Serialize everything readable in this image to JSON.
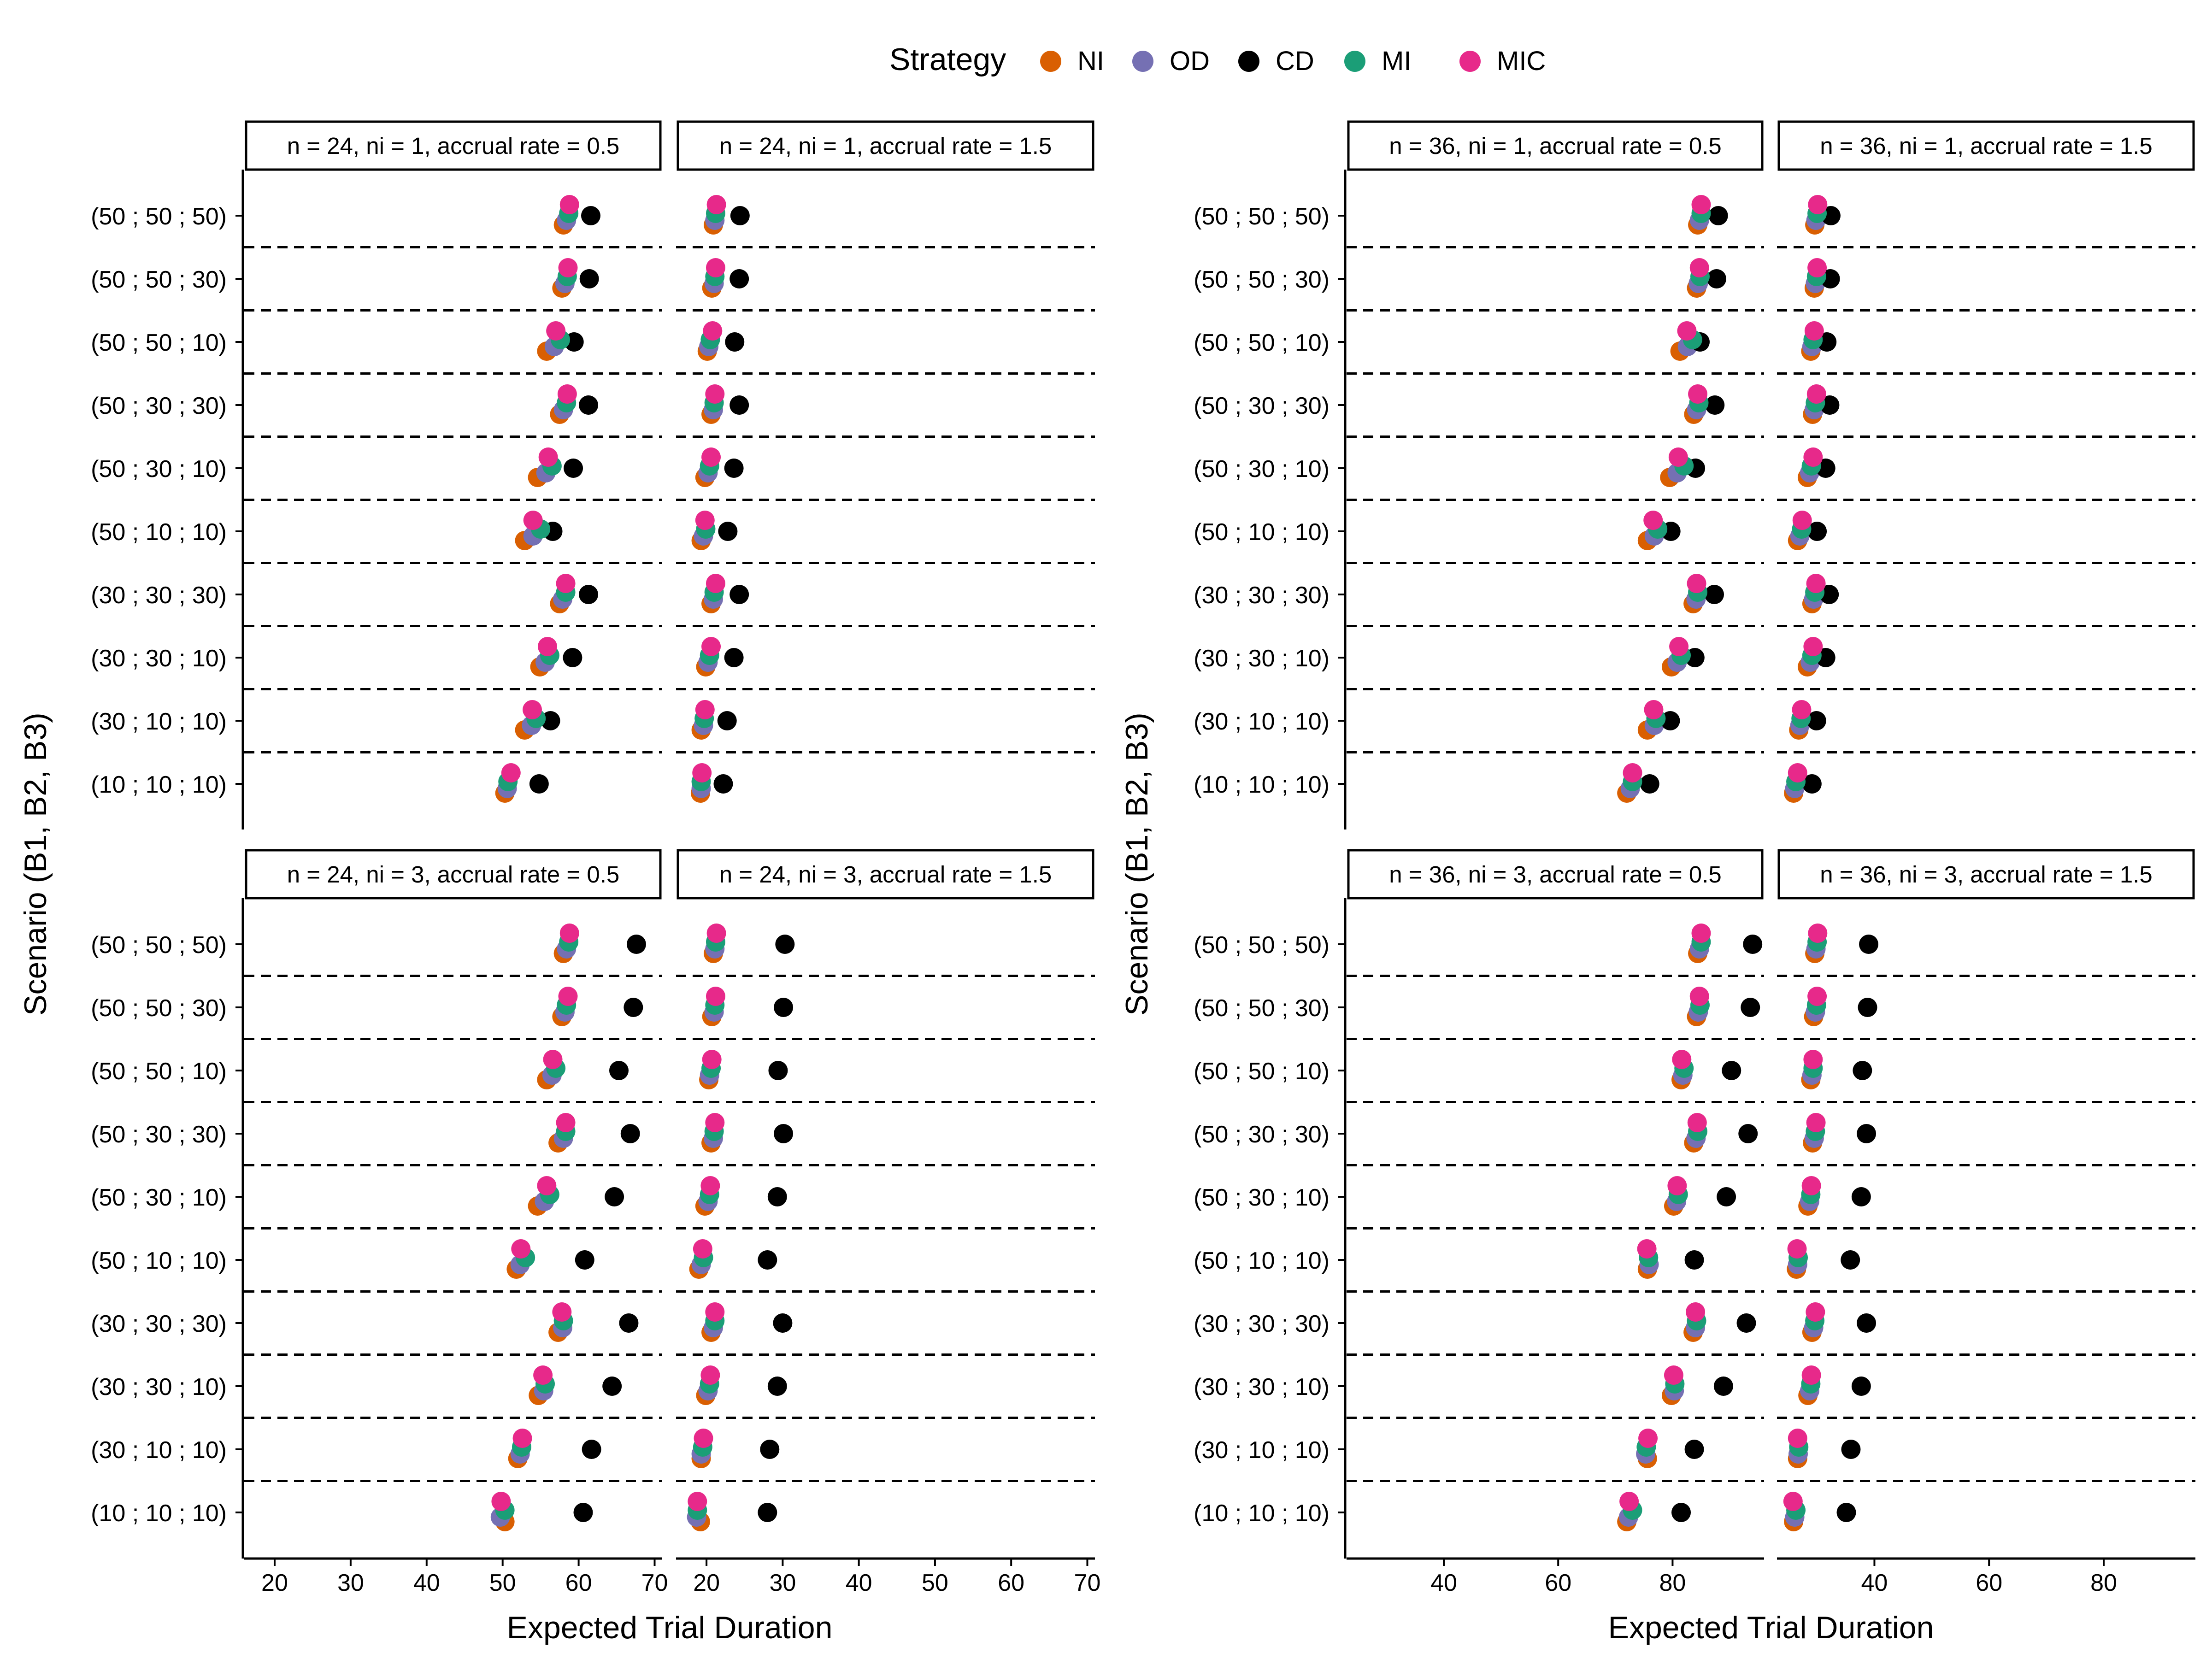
{
  "chart_data": {
    "type": "scatter",
    "legend_title": "Strategy",
    "legend_position": "top",
    "strategies": [
      {
        "name": "NI",
        "color": "#D95F02"
      },
      {
        "name": "OD",
        "color": "#7570B3"
      },
      {
        "name": "CD",
        "color": "#000000"
      },
      {
        "name": "MI",
        "color": "#1B9E77"
      },
      {
        "name": "MIC",
        "color": "#E7298A"
      }
    ],
    "scenarios": [
      "(50 ; 50 ; 50)",
      "(50 ; 50 ; 30)",
      "(50 ; 50 ; 10)",
      "(50 ; 30 ; 30)",
      "(50 ; 30 ; 10)",
      "(50 ; 10 ; 10)",
      "(30 ; 30 ; 30)",
      "(30 ; 30 ; 10)",
      "(30 ; 10 ; 10)",
      "(10 ; 10 ; 10)"
    ],
    "xlabel": "Expected Trial Duration",
    "ylabel": "Scenario (B1, B2, B3)",
    "groups": [
      {
        "xlim": [
          16,
          71
        ],
        "ticks": [
          20,
          30,
          40,
          50,
          60,
          70
        ],
        "rows": [
          {
            "panels": [
              {
                "strip": "n = 24, ni = 1, accrual rate = 0.5",
                "values": {
                  "NI": [
                    58.0,
                    57.8,
                    55.8,
                    57.5,
                    54.6,
                    52.9,
                    57.5,
                    54.9,
                    52.9,
                    50.3
                  ],
                  "OD": [
                    58.4,
                    58.2,
                    56.8,
                    58.0,
                    55.7,
                    54.0,
                    57.9,
                    55.6,
                    53.8,
                    50.6
                  ],
                  "CD": [
                    61.6,
                    61.4,
                    59.4,
                    61.3,
                    59.3,
                    56.6,
                    61.3,
                    59.2,
                    56.3,
                    54.8
                  ],
                  "MI": [
                    58.7,
                    58.5,
                    57.6,
                    58.4,
                    56.5,
                    55.0,
                    58.3,
                    56.2,
                    54.4,
                    50.7
                  ],
                  "MIC": [
                    58.8,
                    58.6,
                    57.0,
                    58.5,
                    56.0,
                    54.0,
                    58.3,
                    55.9,
                    53.9,
                    51.1
                  ]
                }
              },
              {
                "strip": "n = 24, ni = 1, accrual rate = 1.5",
                "values": {
                  "NI": [
                    20.9,
                    20.7,
                    20.1,
                    20.6,
                    19.8,
                    19.3,
                    20.6,
                    19.9,
                    19.3,
                    19.2
                  ],
                  "OD": [
                    21.1,
                    21.0,
                    20.3,
                    20.9,
                    20.2,
                    19.6,
                    20.9,
                    20.2,
                    19.6,
                    19.3
                  ],
                  "CD": [
                    24.4,
                    24.3,
                    23.7,
                    24.3,
                    23.6,
                    22.8,
                    24.3,
                    23.6,
                    22.7,
                    22.2
                  ],
                  "MI": [
                    21.2,
                    21.1,
                    20.5,
                    21.0,
                    20.4,
                    19.9,
                    21.0,
                    20.4,
                    19.7,
                    19.3
                  ],
                  "MIC": [
                    21.3,
                    21.2,
                    20.8,
                    21.1,
                    20.6,
                    19.8,
                    21.2,
                    20.6,
                    19.8,
                    19.4
                  ]
                }
              }
            ]
          },
          {
            "panels": [
              {
                "strip": "n = 24, ni = 3, accrual rate = 0.5",
                "values": {
                  "NI": [
                    58.0,
                    57.8,
                    55.8,
                    57.3,
                    54.6,
                    51.8,
                    57.3,
                    54.7,
                    52.0,
                    50.3
                  ],
                  "OD": [
                    58.4,
                    58.2,
                    56.5,
                    58.0,
                    55.5,
                    52.3,
                    57.9,
                    55.4,
                    52.3,
                    49.7
                  ],
                  "CD": [
                    67.6,
                    67.2,
                    65.3,
                    66.8,
                    64.7,
                    60.8,
                    66.6,
                    64.4,
                    61.7,
                    60.6
                  ],
                  "MI": [
                    58.7,
                    58.4,
                    57.0,
                    58.3,
                    56.2,
                    53.0,
                    58.0,
                    55.6,
                    52.5,
                    50.3
                  ],
                  "MIC": [
                    58.8,
                    58.6,
                    56.6,
                    58.3,
                    55.8,
                    52.4,
                    57.8,
                    55.3,
                    52.6,
                    49.8
                  ]
                }
              },
              {
                "strip": "n = 24, ni = 3, accrual rate = 1.5",
                "values": {
                  "NI": [
                    20.9,
                    20.7,
                    20.3,
                    20.6,
                    19.8,
                    19.0,
                    20.6,
                    19.9,
                    19.3,
                    19.2
                  ],
                  "OD": [
                    21.1,
                    21.0,
                    20.4,
                    20.9,
                    20.2,
                    19.3,
                    20.9,
                    20.2,
                    19.3,
                    18.7
                  ],
                  "CD": [
                    30.3,
                    30.1,
                    29.4,
                    30.1,
                    29.3,
                    28.0,
                    30.0,
                    29.3,
                    28.3,
                    28.0
                  ],
                  "MI": [
                    21.2,
                    21.1,
                    20.6,
                    21.0,
                    20.4,
                    19.6,
                    21.1,
                    20.4,
                    19.5,
                    18.8
                  ],
                  "MIC": [
                    21.3,
                    21.2,
                    20.7,
                    21.1,
                    20.5,
                    19.5,
                    21.1,
                    20.5,
                    19.6,
                    18.8
                  ]
                }
              }
            ]
          }
        ]
      },
      {
        "xlim": [
          23,
          96
        ],
        "ticks": [
          40,
          60,
          80
        ],
        "rows": [
          {
            "panels": [
              {
                "strip": "n = 36, ni = 1, accrual rate = 0.5",
                "values": {
                  "NI": [
                    84.4,
                    84.2,
                    81.3,
                    83.7,
                    79.5,
                    75.6,
                    83.6,
                    79.8,
                    75.6,
                    72.0
                  ],
                  "OD": [
                    84.7,
                    84.5,
                    82.6,
                    84.2,
                    80.8,
                    76.8,
                    84.1,
                    80.8,
                    76.8,
                    72.6
                  ],
                  "CD": [
                    88.0,
                    87.7,
                    84.8,
                    87.4,
                    84.0,
                    79.7,
                    87.3,
                    83.9,
                    79.6,
                    76.0
                  ],
                  "MI": [
                    85.0,
                    84.8,
                    83.5,
                    84.6,
                    82.0,
                    77.4,
                    84.4,
                    81.5,
                    77.1,
                    73.0
                  ],
                  "MIC": [
                    85.0,
                    84.7,
                    82.5,
                    84.4,
                    81.0,
                    76.6,
                    84.2,
                    81.1,
                    76.7,
                    73.0
                  ]
                }
              },
              {
                "strip": "n = 36, ni = 1, accrual rate = 1.5",
                "values": {
                  "NI": [
                    29.6,
                    29.5,
                    28.9,
                    29.2,
                    28.3,
                    26.6,
                    29.1,
                    28.3,
                    26.8,
                    25.9
                  ],
                  "OD": [
                    29.8,
                    29.7,
                    29.1,
                    29.5,
                    28.7,
                    27.0,
                    29.4,
                    28.8,
                    27.0,
                    26.1
                  ],
                  "CD": [
                    32.4,
                    32.3,
                    31.7,
                    32.2,
                    31.5,
                    30.0,
                    32.1,
                    31.5,
                    29.9,
                    29.1
                  ],
                  "MI": [
                    30.0,
                    29.9,
                    29.3,
                    29.7,
                    29.0,
                    27.3,
                    29.6,
                    29.1,
                    27.2,
                    26.3
                  ],
                  "MIC": [
                    30.1,
                    30.0,
                    29.5,
                    29.9,
                    29.3,
                    27.4,
                    29.8,
                    29.3,
                    27.3,
                    26.6
                  ]
                }
              }
            ]
          },
          {
            "panels": [
              {
                "strip": "n = 36, ni = 3, accrual rate = 0.5",
                "values": {
                  "NI": [
                    84.4,
                    84.2,
                    81.5,
                    83.7,
                    80.2,
                    75.6,
                    83.6,
                    79.8,
                    75.6,
                    72.0
                  ],
                  "OD": [
                    84.7,
                    84.5,
                    81.8,
                    84.1,
                    80.7,
                    75.9,
                    84.0,
                    80.3,
                    75.3,
                    72.3
                  ],
                  "CD": [
                    94.0,
                    93.6,
                    90.3,
                    93.2,
                    89.4,
                    83.8,
                    92.9,
                    88.9,
                    83.8,
                    81.5
                  ],
                  "MI": [
                    85.0,
                    84.8,
                    82.0,
                    84.4,
                    81.0,
                    75.8,
                    84.2,
                    80.4,
                    75.4,
                    73.0
                  ],
                  "MIC": [
                    85.0,
                    84.7,
                    81.6,
                    84.3,
                    80.8,
                    75.5,
                    84.0,
                    80.2,
                    75.7,
                    72.4
                  ]
                }
              },
              {
                "strip": "n = 36, ni = 3, accrual rate = 1.5",
                "values": {
                  "NI": [
                    29.6,
                    29.4,
                    28.9,
                    29.2,
                    28.4,
                    26.4,
                    29.1,
                    28.4,
                    26.6,
                    25.9
                  ],
                  "OD": [
                    29.8,
                    29.7,
                    29.1,
                    29.5,
                    28.7,
                    26.6,
                    29.4,
                    28.7,
                    26.7,
                    26.1
                  ],
                  "CD": [
                    39.0,
                    38.8,
                    37.9,
                    38.6,
                    37.7,
                    35.8,
                    38.6,
                    37.7,
                    35.9,
                    35.1
                  ],
                  "MI": [
                    30.0,
                    29.9,
                    29.3,
                    29.7,
                    28.9,
                    26.7,
                    29.6,
                    28.9,
                    26.8,
                    26.3
                  ],
                  "MIC": [
                    30.1,
                    30.0,
                    29.3,
                    29.8,
                    29.0,
                    26.5,
                    29.7,
                    29.0,
                    26.6,
                    25.8
                  ]
                }
              }
            ]
          }
        ]
      }
    ]
  }
}
